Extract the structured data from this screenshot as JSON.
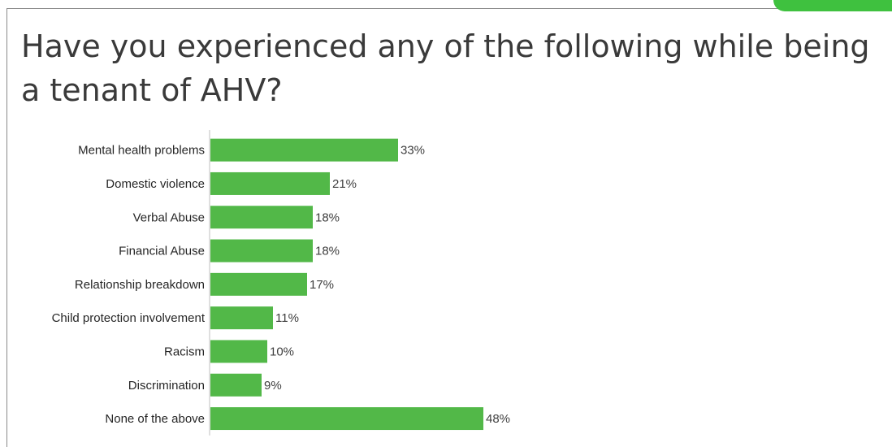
{
  "page": {
    "title": "Have you experienced any of the following while being a tenant of AHV?",
    "accent_color": "#3fc13f",
    "frame_color": "#8a8a8a"
  },
  "chart_data": {
    "type": "bar",
    "orientation": "horizontal",
    "categories": [
      "Mental health problems",
      "Domestic violence",
      "Verbal Abuse",
      "Financial Abuse",
      "Relationship breakdown",
      "Child protection involvement",
      "Racism",
      "Discrimination",
      "None of the above"
    ],
    "values": [
      33,
      21,
      18,
      18,
      17,
      11,
      10,
      9,
      48
    ],
    "value_labels": [
      "33%",
      "21%",
      "18%",
      "18%",
      "17%",
      "11%",
      "10%",
      "9%",
      "48%"
    ],
    "unit": "%",
    "bar_color": "#52b848",
    "xlim": [
      0,
      100
    ],
    "grid": false,
    "legend": "none"
  }
}
